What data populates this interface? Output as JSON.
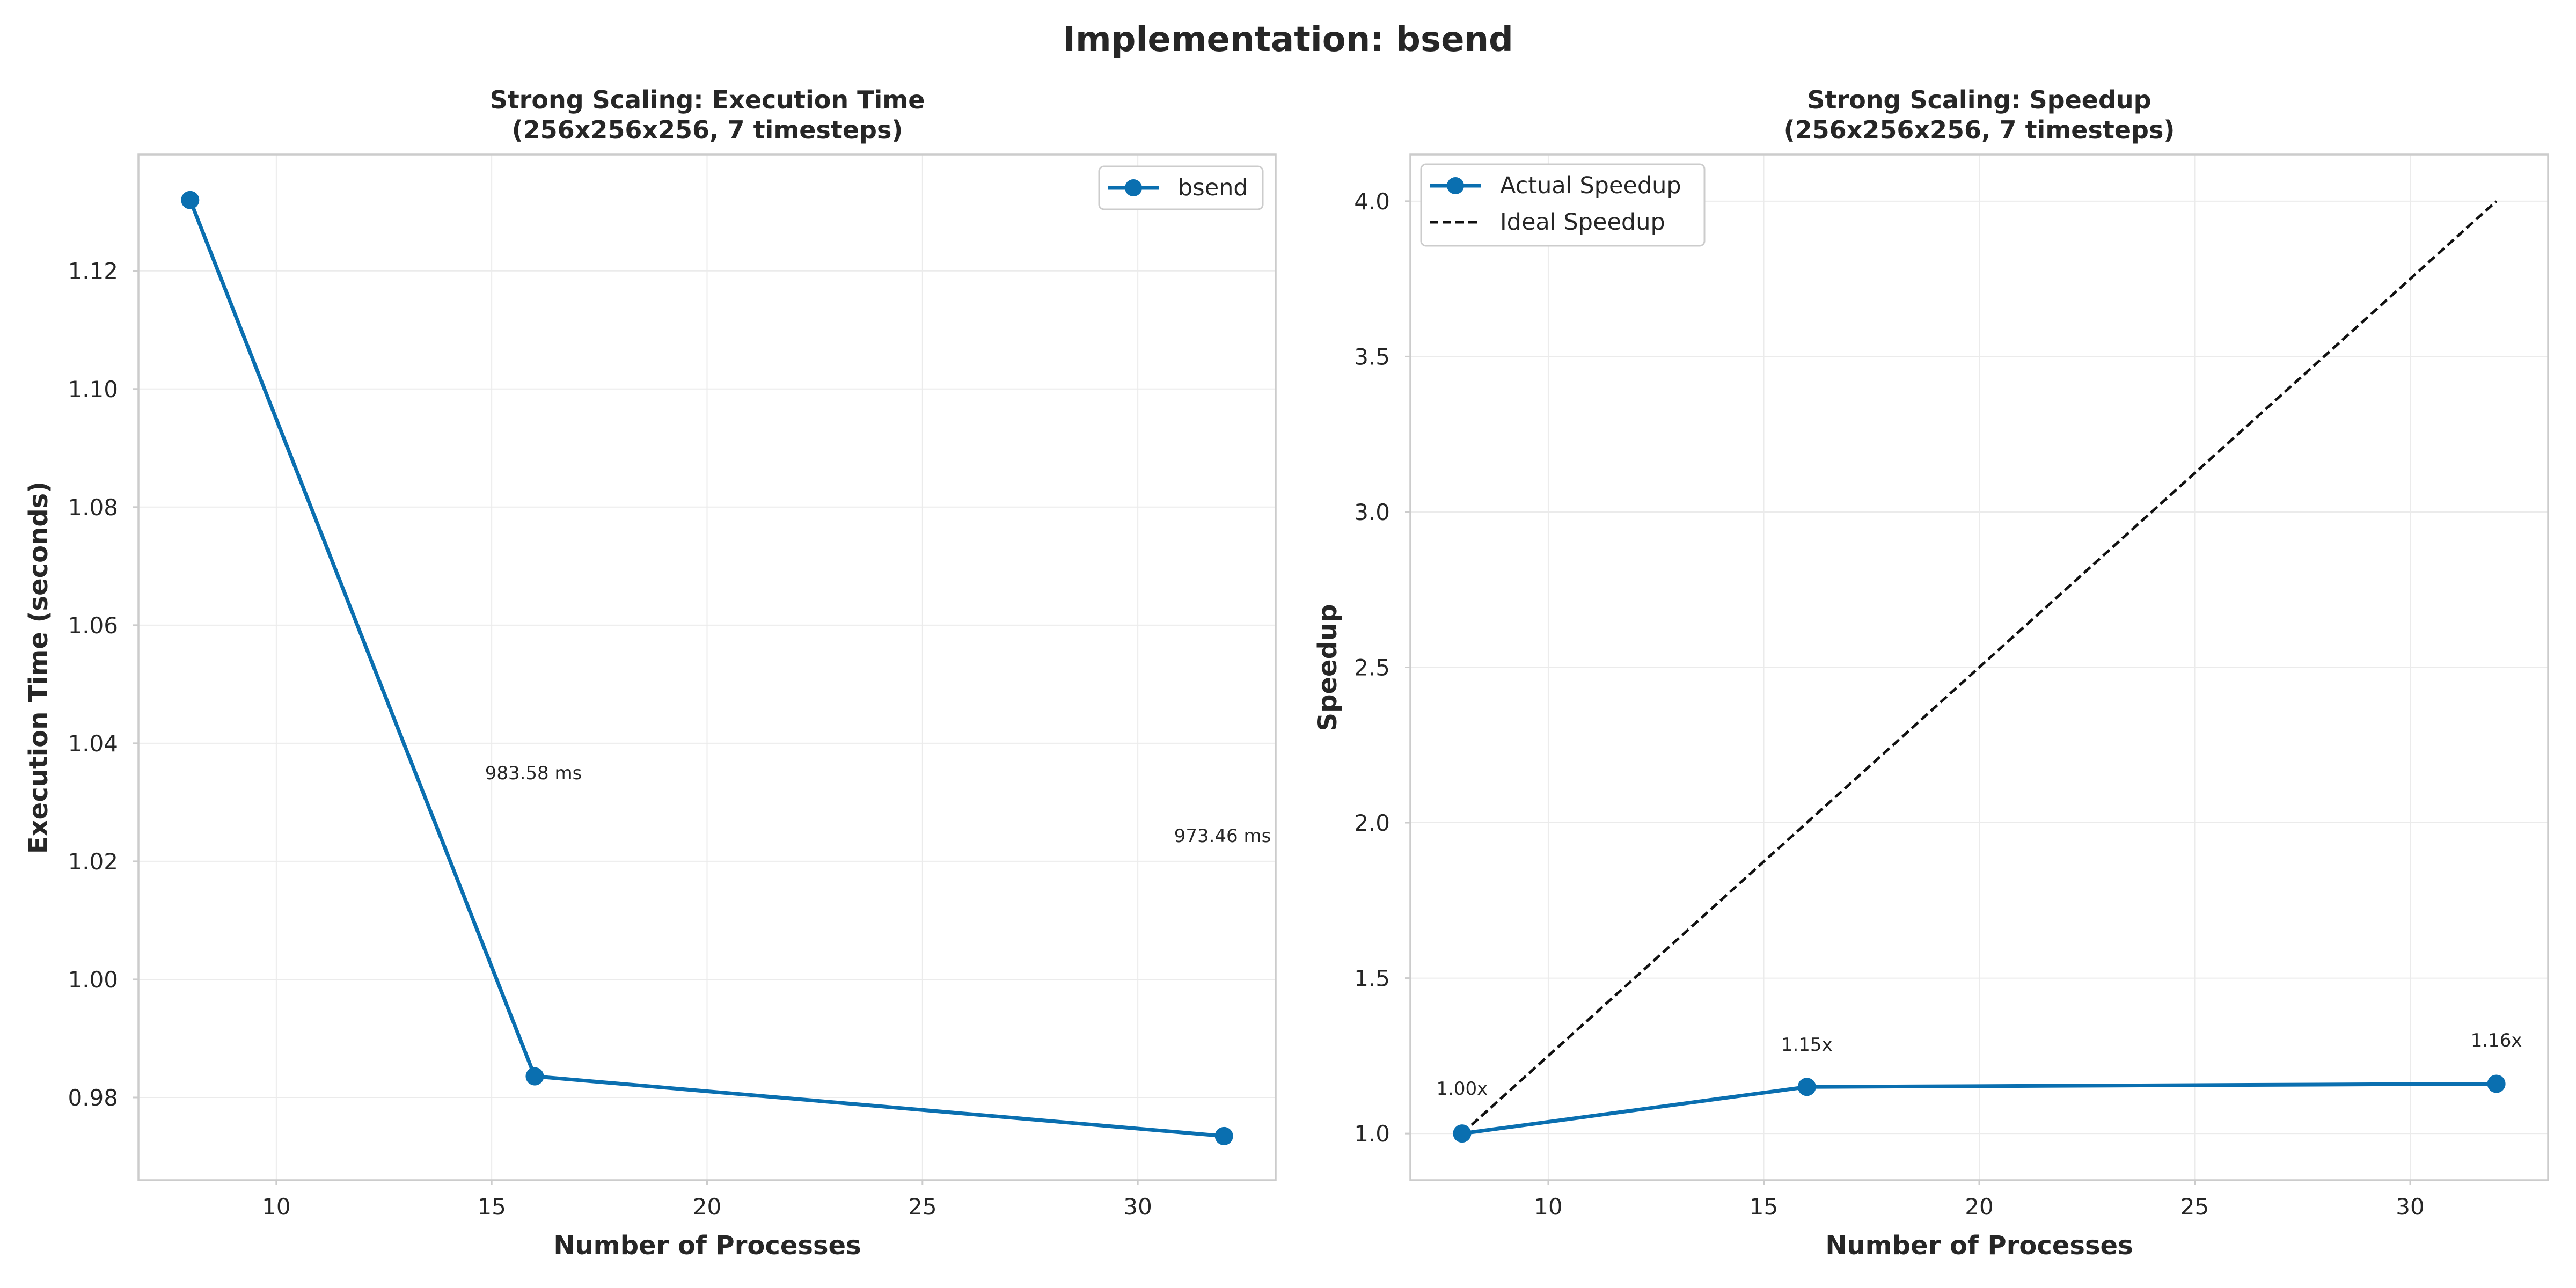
{
  "figure": {
    "suptitle": "Implementation: bsend",
    "colors": {
      "series": "#0a6fb0",
      "ideal": "#111111",
      "grid": "#ebebeb",
      "frame": "#cccccc"
    }
  },
  "chart_data": [
    {
      "type": "line",
      "title_line1": "Strong Scaling: Execution Time",
      "title_line2": "(256x256x256, 7 timesteps)",
      "xlabel": "Number of Processes",
      "ylabel": "Execution Time (seconds)",
      "xlim": [
        6.8,
        33.2
      ],
      "ylim": [
        0.966,
        1.1397
      ],
      "xticks": [
        10,
        15,
        20,
        25,
        30
      ],
      "yticks": [
        0.98,
        1.0,
        1.02,
        1.04,
        1.06,
        1.08,
        1.1,
        1.12
      ],
      "ytick_labels": [
        "0.98",
        "1.00",
        "1.02",
        "1.04",
        "1.06",
        "1.08",
        "1.10",
        "1.12"
      ],
      "grid": true,
      "legend": "upper right",
      "series": [
        {
          "name": "bsend",
          "x": [
            8,
            16,
            32
          ],
          "y": [
            1.132,
            0.98358,
            0.97346
          ],
          "style": "solid-marker"
        }
      ],
      "annotations": [
        {
          "x": 16,
          "y": 0.98358,
          "text": "983.58 ms"
        },
        {
          "x": 32,
          "y": 0.97346,
          "text": "973.46 ms"
        }
      ]
    },
    {
      "type": "line",
      "title_line1": "Strong Scaling: Speedup",
      "title_line2": "(256x256x256, 7 timesteps)",
      "xlabel": "Number of Processes",
      "ylabel": "Speedup",
      "xlim": [
        6.8,
        33.2
      ],
      "ylim": [
        0.85,
        4.15
      ],
      "xticks": [
        10,
        15,
        20,
        25,
        30
      ],
      "yticks": [
        1.0,
        1.5,
        2.0,
        2.5,
        3.0,
        3.5,
        4.0
      ],
      "ytick_labels": [
        "1.0",
        "1.5",
        "2.0",
        "2.5",
        "3.0",
        "3.5",
        "4.0"
      ],
      "grid": true,
      "legend": "upper left",
      "series": [
        {
          "name": "Actual Speedup",
          "x": [
            8,
            16,
            32
          ],
          "y": [
            1.0,
            1.15,
            1.16
          ],
          "style": "solid-marker"
        },
        {
          "name": "Ideal Speedup",
          "x": [
            8,
            32
          ],
          "y": [
            1.0,
            4.0
          ],
          "style": "dashed"
        }
      ],
      "annotations": [
        {
          "x": 8,
          "y": 1.0,
          "text": "1.00x"
        },
        {
          "x": 16,
          "y": 1.15,
          "text": "1.15x"
        },
        {
          "x": 32,
          "y": 1.16,
          "text": "1.16x"
        }
      ]
    }
  ]
}
